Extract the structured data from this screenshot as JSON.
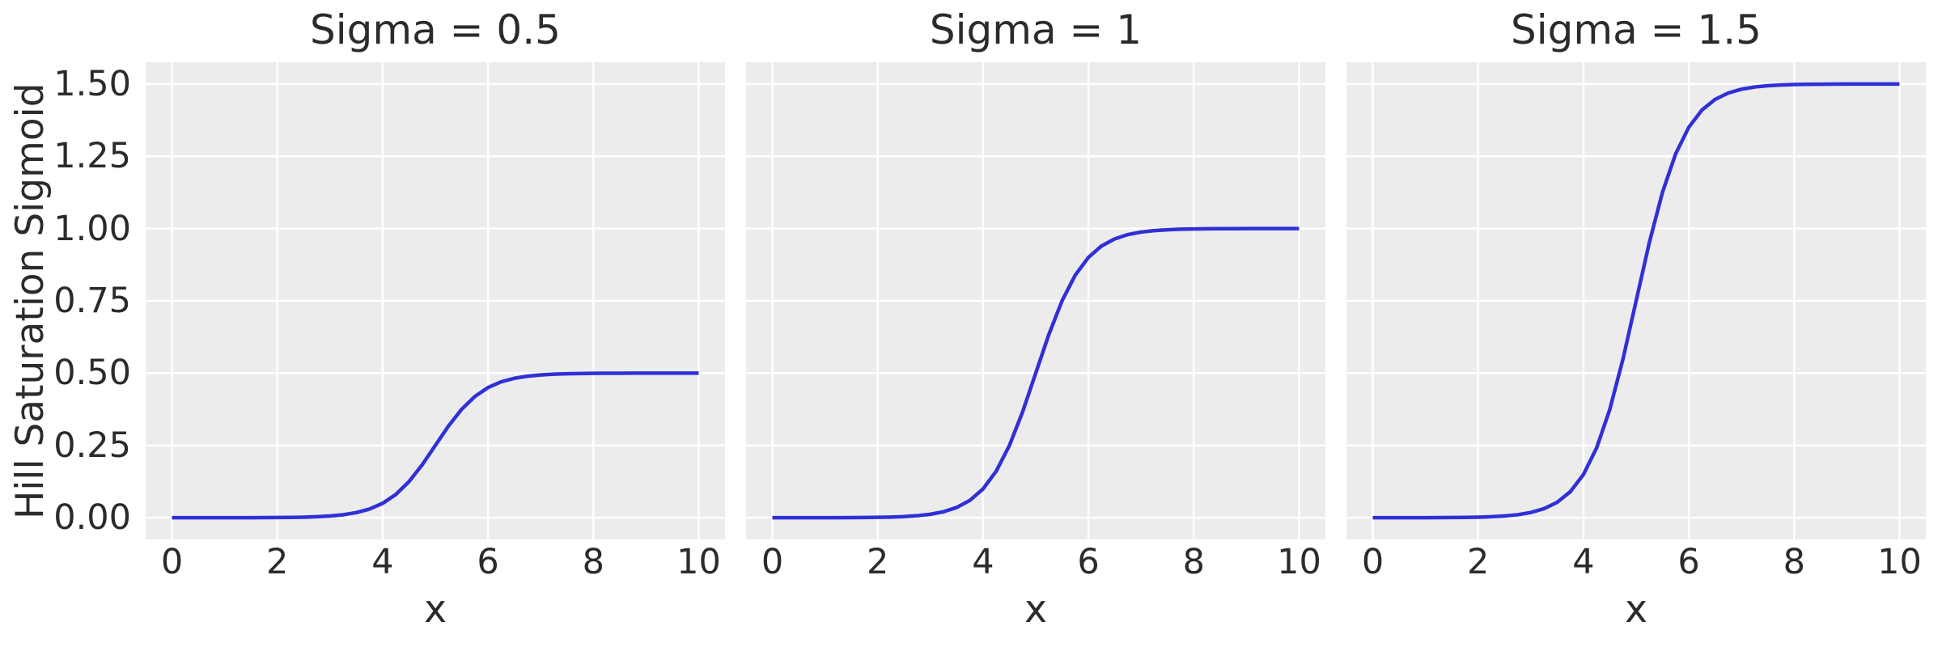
{
  "figure": {
    "background_color": "#ffffff",
    "axes_background_color": "#ececec",
    "grid_color": "#ffffff",
    "line_color": "#3030d6",
    "text_color": "#2b2b2b",
    "shared_ylabel": "Hill Saturation Sigmoid"
  },
  "chart_data": [
    {
      "type": "line",
      "title": "Sigma = 0.5",
      "xlabel": "x",
      "ylabel": "Hill Saturation Sigmoid",
      "legend": false,
      "grid": true,
      "xlim": [
        -0.5,
        10.5
      ],
      "ylim": [
        -0.075,
        1.575
      ],
      "xticks": [
        0,
        2,
        4,
        6,
        8,
        10
      ],
      "yticks": [
        0.0,
        0.25,
        0.5,
        0.75,
        1.0,
        1.25,
        1.5
      ],
      "ytick_labels": [
        "0.00",
        "0.25",
        "0.50",
        "0.75",
        "1.00",
        "1.25",
        "1.50"
      ],
      "show_ytick_labels": true,
      "saturation": 0.5,
      "midpoint": 5,
      "x": [
        0,
        0.25,
        0.5,
        0.75,
        1,
        1.25,
        1.5,
        1.75,
        2,
        2.25,
        2.5,
        2.75,
        3,
        3.25,
        3.5,
        3.75,
        4,
        4.25,
        4.5,
        4.75,
        5,
        5.25,
        5.5,
        5.75,
        6,
        6.25,
        6.5,
        6.75,
        7,
        7.25,
        7.5,
        7.75,
        8,
        8.25,
        8.5,
        8.75,
        9,
        9.25,
        9.5,
        9.75,
        10
      ],
      "y": [
        0,
        0,
        0,
        0,
        0.0001,
        0.0001,
        0.0002,
        0.0004,
        0.0007,
        0.0012,
        0.002,
        0.0035,
        0.0061,
        0.0104,
        0.0178,
        0.03,
        0.0499,
        0.0806,
        0.1249,
        0.1829,
        0.25,
        0.3171,
        0.3751,
        0.4194,
        0.4501,
        0.47,
        0.4822,
        0.4896,
        0.4939,
        0.4965,
        0.498,
        0.4988,
        0.4993,
        0.4996,
        0.4998,
        0.4999,
        0.4999,
        0.5,
        0.5,
        0.5,
        0.5
      ]
    },
    {
      "type": "line",
      "title": "Sigma = 1",
      "xlabel": "x",
      "ylabel": "Hill Saturation Sigmoid",
      "legend": false,
      "grid": true,
      "xlim": [
        -0.5,
        10.5
      ],
      "ylim": [
        -0.075,
        1.575
      ],
      "xticks": [
        0,
        2,
        4,
        6,
        8,
        10
      ],
      "yticks": [
        0.0,
        0.25,
        0.5,
        0.75,
        1.0,
        1.25,
        1.5
      ],
      "ytick_labels": [
        "0.00",
        "0.25",
        "0.50",
        "0.75",
        "1.00",
        "1.25",
        "1.50"
      ],
      "show_ytick_labels": false,
      "saturation": 1.0,
      "midpoint": 5,
      "x": [
        0,
        0.25,
        0.5,
        0.75,
        1,
        1.25,
        1.5,
        1.75,
        2,
        2.25,
        2.5,
        2.75,
        3,
        3.25,
        3.5,
        3.75,
        4,
        4.25,
        4.5,
        4.75,
        5,
        5.25,
        5.5,
        5.75,
        6,
        6.25,
        6.5,
        6.75,
        7,
        7.25,
        7.5,
        7.75,
        8,
        8.25,
        8.5,
        8.75,
        9,
        9.25,
        9.5,
        9.75,
        10
      ],
      "y": [
        0,
        0,
        0.0001,
        0.0001,
        0.0002,
        0.0003,
        0.0005,
        0.0008,
        0.0014,
        0.0024,
        0.0041,
        0.007,
        0.0121,
        0.0208,
        0.0356,
        0.0601,
        0.0998,
        0.1611,
        0.2497,
        0.3658,
        0.5,
        0.6342,
        0.7503,
        0.8389,
        0.9002,
        0.9399,
        0.9644,
        0.9792,
        0.9879,
        0.993,
        0.9959,
        0.9977,
        0.9986,
        0.9992,
        0.9995,
        0.9997,
        0.9999,
        0.9999,
        0.9999,
        1,
        1
      ]
    },
    {
      "type": "line",
      "title": "Sigma = 1.5",
      "xlabel": "x",
      "ylabel": "Hill Saturation Sigmoid",
      "legend": false,
      "grid": true,
      "xlim": [
        -0.5,
        10.5
      ],
      "ylim": [
        -0.075,
        1.575
      ],
      "xticks": [
        0,
        2,
        4,
        6,
        8,
        10
      ],
      "yticks": [
        0.0,
        0.25,
        0.5,
        0.75,
        1.0,
        1.25,
        1.5
      ],
      "ytick_labels": [
        "0.00",
        "0.25",
        "0.50",
        "0.75",
        "1.00",
        "1.25",
        "1.50"
      ],
      "show_ytick_labels": false,
      "saturation": 1.5,
      "midpoint": 5,
      "x": [
        0,
        0.25,
        0.5,
        0.75,
        1,
        1.25,
        1.5,
        1.75,
        2,
        2.25,
        2.5,
        2.75,
        3,
        3.25,
        3.5,
        3.75,
        4,
        4.25,
        4.5,
        4.75,
        5,
        5.25,
        5.5,
        5.75,
        6,
        6.25,
        6.5,
        6.75,
        7,
        7.25,
        7.5,
        7.75,
        8,
        8.25,
        8.5,
        8.75,
        9,
        9.25,
        9.5,
        9.75,
        10
      ],
      "y": [
        0,
        0,
        0.0001,
        0.0001,
        0.0002,
        0.0004,
        0.0007,
        0.0012,
        0.002,
        0.0035,
        0.0061,
        0.0105,
        0.0182,
        0.0313,
        0.0533,
        0.0901,
        0.1496,
        0.2417,
        0.3746,
        0.5487,
        0.75,
        0.9513,
        1.1254,
        1.2583,
        1.3504,
        1.4099,
        1.4467,
        1.4687,
        1.4818,
        1.4895,
        1.4939,
        1.4965,
        1.498,
        1.4988,
        1.4993,
        1.4996,
        1.4998,
        1.4999,
        1.4999,
        1.5,
        1.5
      ]
    }
  ]
}
